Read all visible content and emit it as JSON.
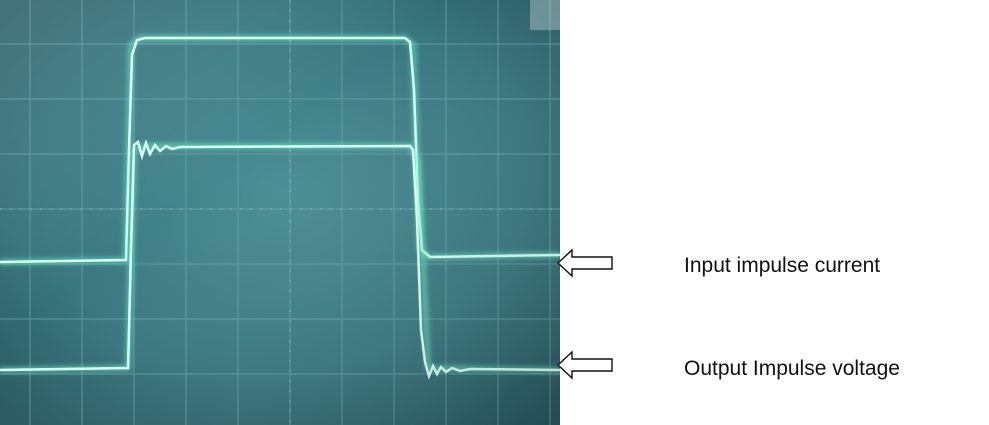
{
  "labels": {
    "input": "Input impulse current",
    "output": "Output Impulse voltage"
  },
  "icons": {
    "input_arrow": "left-arrow-outline-icon",
    "output_arrow": "left-arrow-outline-icon"
  },
  "colors": {
    "screen": "#3d7e86",
    "trace": "#c8fff0",
    "glow": "#6ff0c8",
    "grid": "#5e9aa0"
  }
}
